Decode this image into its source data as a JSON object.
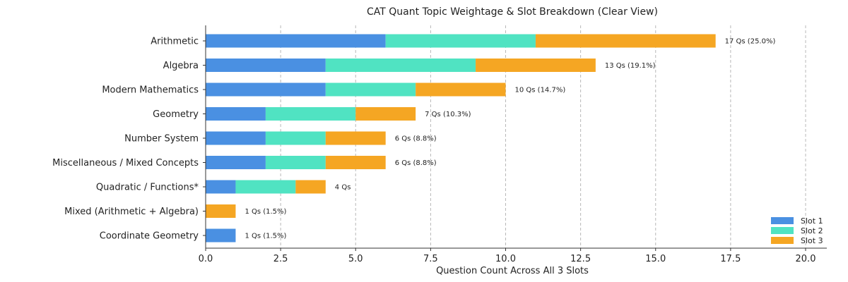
{
  "chart_data": {
    "type": "bar",
    "orientation": "horizontal",
    "stacked": true,
    "title": "CAT Quant Topic Weightage & Slot Breakdown (Clear View)",
    "xlabel": "Question Count Across All 3 Slots",
    "xlim": [
      0,
      20
    ],
    "xticks": [
      "0.0",
      "2.5",
      "5.0",
      "7.5",
      "10.0",
      "12.5",
      "15.0",
      "17.5",
      "20.0"
    ],
    "xtick_values": [
      0,
      2.5,
      5,
      7.5,
      10,
      12.5,
      15,
      17.5,
      20
    ],
    "grid": "x-dashed",
    "legend_position": "bottom-right",
    "categories": [
      "Arithmetic",
      "Algebra",
      "Modern Mathematics",
      "Geometry",
      "Number System",
      "Miscellaneous / Mixed Concepts",
      "Quadratic / Functions*",
      "Mixed (Arithmetic + Algebra)",
      "Coordinate Geometry"
    ],
    "series": [
      {
        "name": "Slot 1",
        "color": "#4a90e2",
        "values": [
          6,
          4,
          4,
          2,
          2,
          2,
          1,
          0,
          1
        ]
      },
      {
        "name": "Slot 2",
        "color": "#50e3c2",
        "values": [
          5,
          5,
          3,
          3,
          2,
          2,
          2,
          0,
          0
        ]
      },
      {
        "name": "Slot 3",
        "color": "#f5a623",
        "values": [
          6,
          4,
          3,
          2,
          2,
          2,
          1,
          1,
          0
        ]
      }
    ],
    "data_labels": [
      "17 Qs (25.0%)",
      "13 Qs (19.1%)",
      "10 Qs (14.7%)",
      "7 Qs (10.3%)",
      "6 Qs (8.8%)",
      "6 Qs (8.8%)",
      "4 Qs",
      "1 Qs (1.5%)",
      "1 Qs (1.5%)"
    ]
  }
}
